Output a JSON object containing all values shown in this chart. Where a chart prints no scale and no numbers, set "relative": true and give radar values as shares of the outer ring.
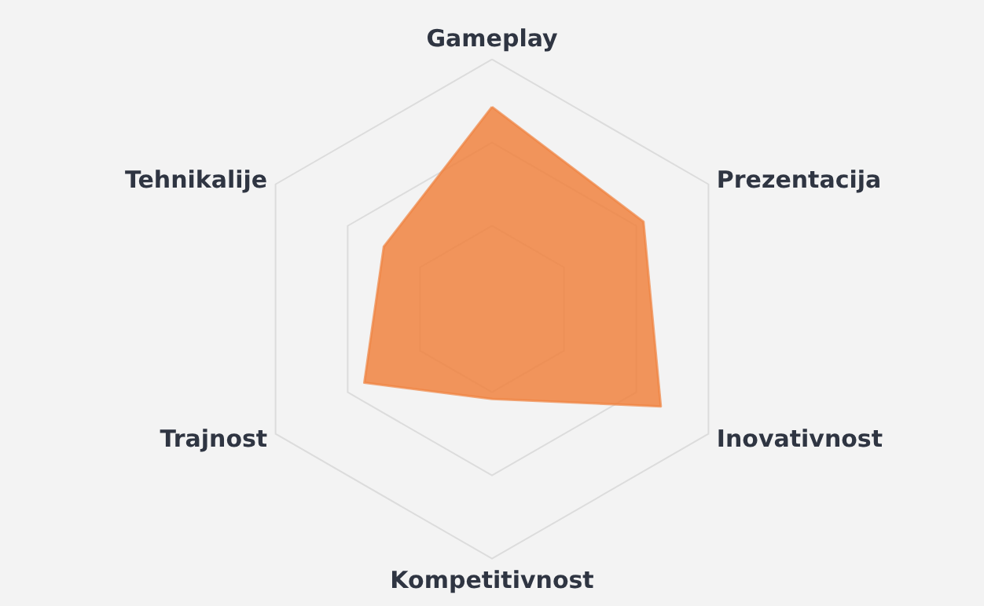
{
  "chart_data": {
    "type": "radar",
    "categories": [
      "Gameplay",
      "Prezentacija",
      "Inovativnost",
      "Kompetitivnost",
      "Trajnost",
      "Tehnikalije"
    ],
    "relative": true,
    "grid": true,
    "marker": "none",
    "series": [
      {
        "color": "#f0823f",
        "values": [
          0.81,
          0.7,
          0.78,
          0.36,
          0.59,
          0.5
        ]
      }
    ]
  }
}
